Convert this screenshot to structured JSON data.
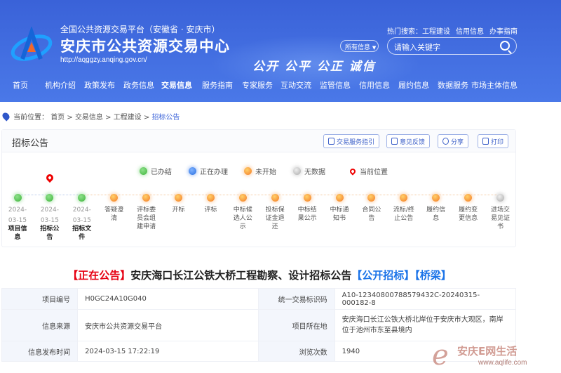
{
  "header": {
    "subtitle": "全国公共资源交易平台（安徽省 · 安庆市）",
    "title": "安庆市公共资源交易中心",
    "url": "http://aqggzy.anqing.gov.cn/",
    "slogan": "公开  公平  公正  诚信",
    "hot_label": "热门搜索：",
    "hot_items": [
      "工程建设",
      "信用信息",
      "办事指南"
    ],
    "scope_select": "所有信息",
    "search_placeholder": "请输入关键字"
  },
  "nav": [
    {
      "label": "首页"
    },
    {
      "label": "机构介绍"
    },
    {
      "label": "政策发布"
    },
    {
      "label": "政务信息"
    },
    {
      "label": "交易信息",
      "active": true
    },
    {
      "label": "服务指南"
    },
    {
      "label": "专家服务"
    },
    {
      "label": "互动交流"
    },
    {
      "label": "监管信息"
    },
    {
      "label": "信用信息"
    },
    {
      "label": "履约信息"
    },
    {
      "label": "数据服务"
    },
    {
      "label": "市场主体信息"
    }
  ],
  "breadcrumb": {
    "label": "当前位置：",
    "items": [
      "首页",
      "交易信息",
      "工程建设",
      "招标公告"
    ]
  },
  "card": {
    "title": "招标公告",
    "buttons": [
      "交易服务指引",
      "意见反馈",
      "分享",
      "打印"
    ]
  },
  "legend": [
    {
      "label": "已办结",
      "status": "done"
    },
    {
      "label": "正在办理",
      "status": "doing"
    },
    {
      "label": "未开始",
      "status": "todo"
    },
    {
      "label": "无数据",
      "status": "none"
    },
    {
      "label": "当前位置",
      "status": "current"
    }
  ],
  "colors": {
    "done": "#3fb53c",
    "doing": "#2a6fe0",
    "todo": "#f47a25",
    "none": "#aaaaaa",
    "current": "#e60012",
    "accent": "#3b63d9"
  },
  "timeline": [
    {
      "lines": [
        "项目信",
        "息"
      ],
      "date": [
        "2024-",
        "03-15"
      ],
      "status": "done"
    },
    {
      "lines": [
        "招标公",
        "告"
      ],
      "date": [
        "2024-",
        "03-15"
      ],
      "status": "done",
      "current": true
    },
    {
      "lines": [
        "招标文",
        "件"
      ],
      "date": [
        "2024-",
        "03-15"
      ],
      "status": "done"
    },
    {
      "lines": [
        "答疑澄",
        "清"
      ],
      "status": "todo"
    },
    {
      "lines": [
        "评标委",
        "员会组",
        "建申请"
      ],
      "status": "todo"
    },
    {
      "lines": [
        "开标"
      ],
      "status": "todo"
    },
    {
      "lines": [
        "评标"
      ],
      "status": "todo"
    },
    {
      "lines": [
        "中标候",
        "选人公",
        "示"
      ],
      "status": "todo"
    },
    {
      "lines": [
        "投标保",
        "证金退",
        "还"
      ],
      "status": "todo"
    },
    {
      "lines": [
        "中标结",
        "果公示"
      ],
      "status": "todo"
    },
    {
      "lines": [
        "中标通",
        "知书"
      ],
      "status": "todo"
    },
    {
      "lines": [
        "合同公",
        "告"
      ],
      "status": "todo"
    },
    {
      "lines": [
        "流标/终",
        "止公告"
      ],
      "status": "todo"
    },
    {
      "lines": [
        "履约信",
        "息"
      ],
      "status": "todo"
    },
    {
      "lines": [
        "履约变",
        "更信息"
      ],
      "status": "todo"
    },
    {
      "lines": [
        "进场交",
        "易见证",
        "书"
      ],
      "status": "none"
    }
  ],
  "notice": {
    "status_tag": "【正在公告】",
    "title": "安庆海口长江公铁大桥工程勘察、设计招标公告",
    "type_tag": "【公开招标】",
    "category_tag": "【桥梁】"
  },
  "details": [
    [
      {
        "k": "项目编号",
        "v": "H0GC24A10G040"
      },
      {
        "k": "统一交易标识码",
        "v": "A10-12340800788579432C-20240315-000182-8"
      }
    ],
    [
      {
        "k": "信息来源",
        "v": "安庆市公共资源交易平台"
      },
      {
        "k": "项目所在地",
        "v": "安庆海口长江公铁大桥北岸位于安庆市大观区，南岸位于池州市东至县境内"
      }
    ],
    [
      {
        "k": "信息发布时间",
        "v": "2024-03-15 17:22:19"
      },
      {
        "k": "浏览次数",
        "v": "1940"
      }
    ]
  ],
  "watermark": {
    "text": "安庆E网生活",
    "url": "www.aqlife.com"
  }
}
